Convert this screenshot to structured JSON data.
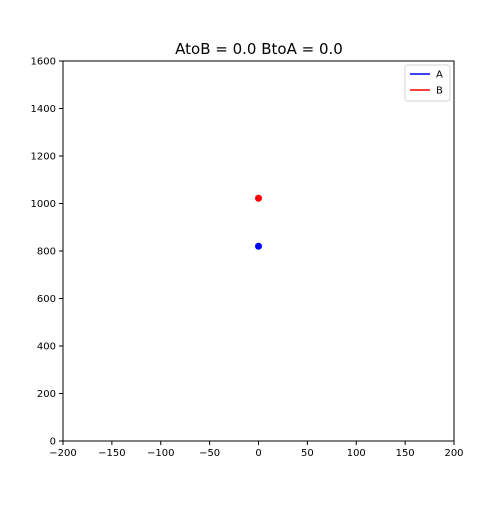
{
  "chart_data": {
    "type": "scatter",
    "title": "AtoB = 0.0   BtoA = 0.0",
    "xlabel": "",
    "ylabel": "",
    "xlim": [
      -200,
      200
    ],
    "ylim": [
      0,
      1600
    ],
    "x_ticks": [
      -200,
      -150,
      -100,
      -50,
      0,
      50,
      100,
      150,
      200
    ],
    "y_ticks": [
      0,
      200,
      400,
      600,
      800,
      1000,
      1200,
      1400,
      1600
    ],
    "x_tick_labels": [
      "−200",
      "−150",
      "−100",
      "−50",
      "0",
      "50",
      "100",
      "150",
      "200"
    ],
    "y_tick_labels": [
      "0",
      "200",
      "400",
      "600",
      "800",
      "1000",
      "1200",
      "1400",
      "1600"
    ],
    "grid": false,
    "legend_position": "top-right",
    "series": [
      {
        "name": "A",
        "color": "#0000ff",
        "points": [
          {
            "x": 0,
            "y": 820
          }
        ]
      },
      {
        "name": "B",
        "color": "#ff0000",
        "points": [
          {
            "x": 0,
            "y": 1022
          }
        ]
      }
    ]
  }
}
